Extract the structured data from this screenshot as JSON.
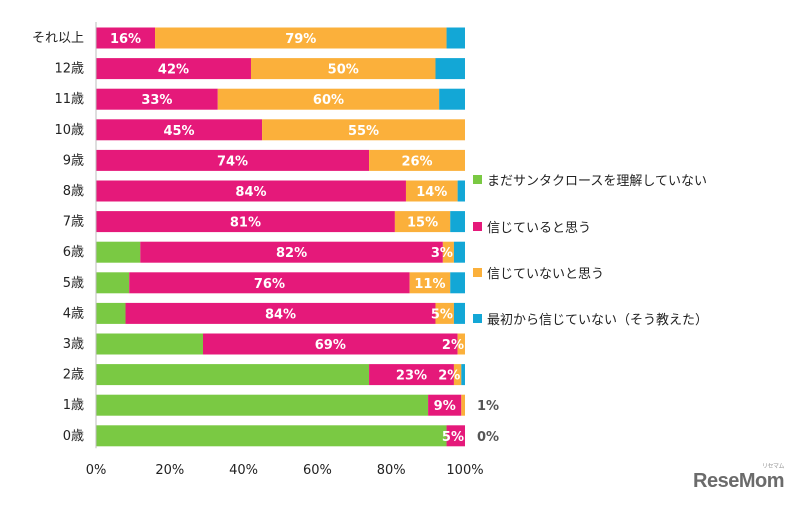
{
  "chart_data": {
    "type": "bar",
    "orientation": "horizontal",
    "stacked": true,
    "categories": [
      "それ以上",
      "12歳",
      "11歳",
      "10歳",
      "9歳",
      "8歳",
      "7歳",
      "6歳",
      "5歳",
      "4歳",
      "3歳",
      "2歳",
      "1歳",
      "0歳"
    ],
    "series": [
      {
        "name": "まだサンタクロースを理解していない",
        "color": "#7ac943",
        "values": [
          0,
          0,
          0,
          0,
          0,
          0,
          0,
          12,
          9,
          8,
          29,
          74,
          90,
          95
        ]
      },
      {
        "name": "信じていると思う",
        "color": "#e5197a",
        "values": [
          16,
          42,
          33,
          45,
          74,
          84,
          81,
          82,
          76,
          84,
          69,
          23,
          9,
          5
        ]
      },
      {
        "name": "信じていないと思う",
        "color": "#fbb03b",
        "values": [
          79,
          50,
          60,
          55,
          26,
          14,
          15,
          3,
          11,
          5,
          2,
          2,
          1,
          0
        ]
      },
      {
        "name": "最初から信じていない（そう教えた）",
        "color": "#13a7d6",
        "values": [
          5,
          8,
          7,
          0,
          0,
          2,
          4,
          3,
          4,
          3,
          0,
          1,
          0,
          0
        ]
      }
    ],
    "data_labels": [
      [
        {
          "series": 1,
          "text": "16%"
        },
        {
          "series": 2,
          "text": "79%"
        }
      ],
      [
        {
          "series": 1,
          "text": "42%"
        },
        {
          "series": 2,
          "text": "50%"
        }
      ],
      [
        {
          "series": 1,
          "text": "33%"
        },
        {
          "series": 2,
          "text": "60%"
        }
      ],
      [
        {
          "series": 1,
          "text": "45%"
        },
        {
          "series": 2,
          "text": "55%"
        }
      ],
      [
        {
          "series": 1,
          "text": "74%"
        },
        {
          "series": 2,
          "text": "26%"
        }
      ],
      [
        {
          "series": 1,
          "text": "84%"
        },
        {
          "series": 2,
          "text": "14%"
        }
      ],
      [
        {
          "series": 1,
          "text": "81%"
        },
        {
          "series": 2,
          "text": "15%"
        }
      ],
      [
        {
          "series": 1,
          "text": "82%"
        },
        {
          "series": 2,
          "text": "3%"
        }
      ],
      [
        {
          "series": 1,
          "text": "76%"
        },
        {
          "series": 2,
          "text": "11%"
        }
      ],
      [
        {
          "series": 1,
          "text": "84%"
        },
        {
          "series": 2,
          "text": "5%"
        }
      ],
      [
        {
          "series": 1,
          "text": "69%"
        },
        {
          "series": 2,
          "text": "2%"
        }
      ],
      [
        {
          "series": 1,
          "text": "23%"
        },
        {
          "series": 2,
          "text": "2%"
        }
      ],
      [
        {
          "series": 1,
          "text": "9%"
        },
        {
          "series": 2,
          "text": "1%",
          "position": "outside"
        }
      ],
      [
        {
          "series": 1,
          "text": "5%"
        },
        {
          "series": 2,
          "text": "0%",
          "position": "outside"
        }
      ]
    ],
    "x_ticks": [
      "0%",
      "20%",
      "40%",
      "60%",
      "80%",
      "100%"
    ],
    "xlim": [
      0,
      100
    ],
    "title": "",
    "xlabel": "",
    "ylabel": "",
    "grid": false,
    "legend_position": "right"
  },
  "watermark": {
    "brand": "ReseMom",
    "sub": "リセマム"
  }
}
